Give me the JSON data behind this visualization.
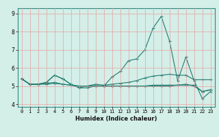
{
  "xlabel": "Humidex (Indice chaleur)",
  "ylabel": "",
  "xlim": [
    -0.5,
    23.5
  ],
  "ylim": [
    3.85,
    9.3
  ],
  "yticks": [
    4,
    5,
    6,
    7,
    8,
    9
  ],
  "xticks": [
    0,
    1,
    2,
    3,
    4,
    5,
    6,
    7,
    8,
    9,
    10,
    11,
    12,
    13,
    14,
    15,
    16,
    17,
    18,
    19,
    20,
    21,
    22,
    23
  ],
  "bg_color": "#d4eee8",
  "grid_color": "#e8a0a0",
  "line_color": "#1a7a6e",
  "line1": [
    5.4,
    5.1,
    5.1,
    5.2,
    5.6,
    5.4,
    5.1,
    4.9,
    4.9,
    5.0,
    5.0,
    5.5,
    5.8,
    6.4,
    6.5,
    7.0,
    8.2,
    8.85,
    7.5,
    5.3,
    6.6,
    5.3,
    4.3,
    4.7
  ],
  "line2": [
    5.4,
    5.1,
    5.1,
    5.2,
    5.6,
    5.4,
    5.1,
    4.9,
    5.0,
    5.1,
    5.05,
    5.1,
    5.15,
    5.2,
    5.3,
    5.45,
    5.55,
    5.6,
    5.65,
    5.6,
    5.6,
    5.35,
    5.35,
    5.35
  ],
  "line3": [
    5.4,
    5.1,
    5.1,
    5.15,
    5.2,
    5.1,
    5.05,
    5.0,
    5.0,
    5.02,
    5.0,
    5.0,
    5.0,
    5.0,
    5.0,
    5.0,
    5.05,
    5.05,
    5.05,
    5.05,
    5.1,
    5.0,
    4.7,
    4.8
  ],
  "line4": [
    5.4,
    5.1,
    5.1,
    5.1,
    5.15,
    5.1,
    5.05,
    5.0,
    5.0,
    5.0,
    5.0,
    5.0,
    5.0,
    5.0,
    5.0,
    5.0,
    5.0,
    5.0,
    5.0,
    5.05,
    5.05,
    5.05,
    4.7,
    4.78
  ],
  "marker": "+",
  "title_fontsize": 7,
  "xlabel_fontsize": 6,
  "tick_fontsize": 5
}
